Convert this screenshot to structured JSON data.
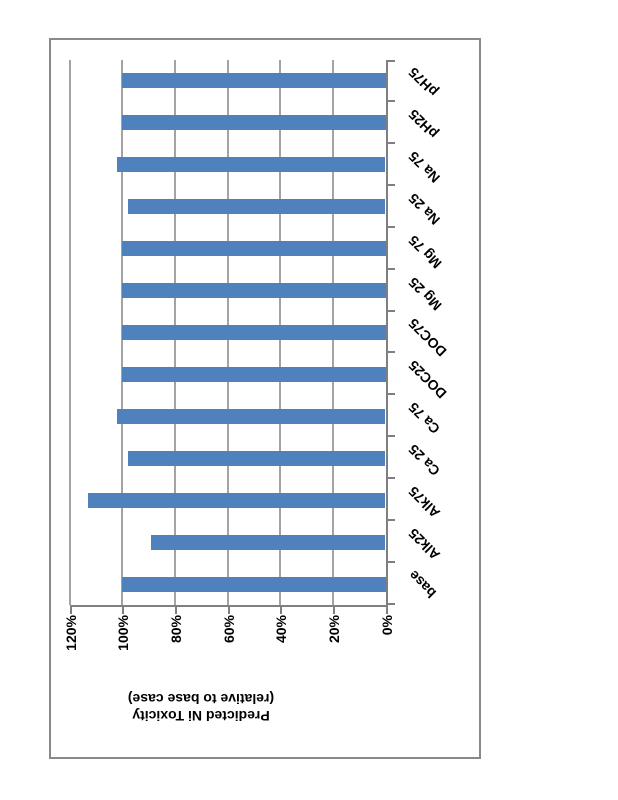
{
  "styles": {
    "bar_color": "#4f81bd",
    "gridline_color": "#a3a3a3",
    "axis_color": "#7f7f7f",
    "border_color": "#898989",
    "text_color": "#000000",
    "page_bg": "#ffffff"
  },
  "chart_data": {
    "type": "bar",
    "title": "",
    "value_axis_title": "Predicted Ni Toxicity (relative to base case)",
    "value_axis_title_lines": [
      "Predicted Ni Toxicity",
      "(relative to base case)"
    ],
    "categories": [
      "base",
      "Alk25",
      "Alk75",
      "Ca 25",
      "Ca 75",
      "DOC25",
      "DOC75",
      "Mg 25",
      "Mg 75",
      "Na 25",
      "Na 75",
      "pH25",
      "pH75"
    ],
    "values": [
      100,
      89,
      113,
      98,
      102,
      100,
      100,
      100,
      100,
      98,
      102,
      100,
      100
    ],
    "unit": "%",
    "ylim": [
      0,
      120
    ],
    "ytick_step": 20,
    "ytick_labels": [
      "0%",
      "20%",
      "40%",
      "60%",
      "80%",
      "100%",
      "120%"
    ],
    "grid": true,
    "legend": false,
    "layout_note": "column chart rotated 90 degrees counter-clockwise on the page; category labels at 45 degrees"
  }
}
